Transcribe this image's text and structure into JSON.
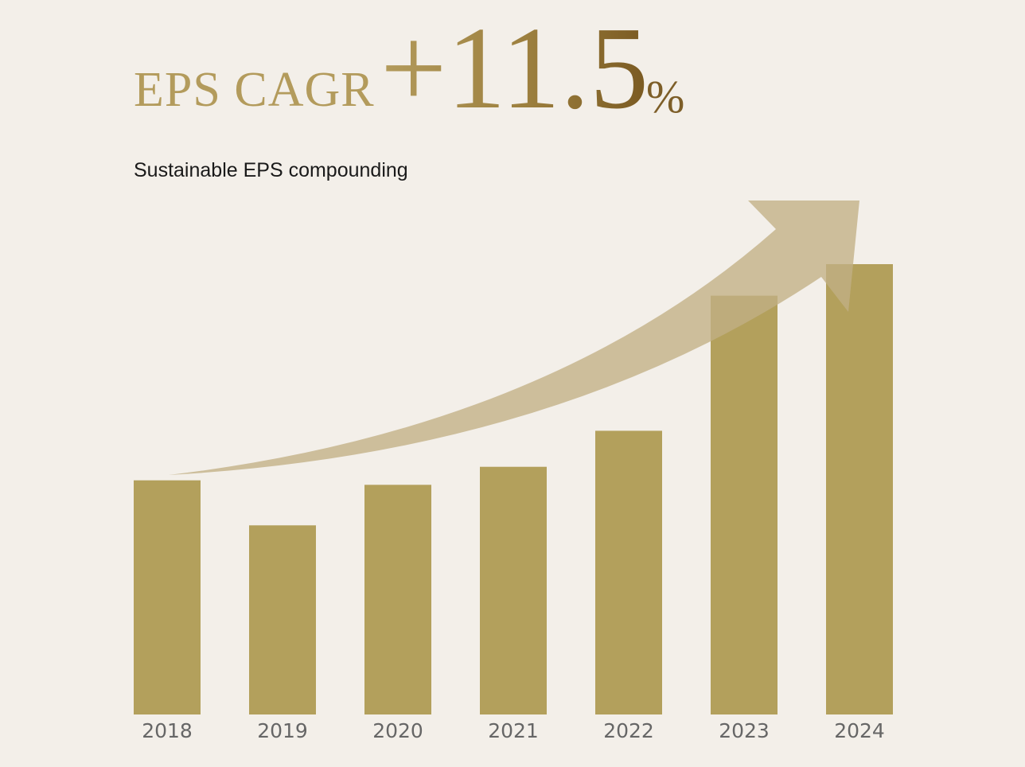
{
  "headline": {
    "label": "EPS CAGR",
    "value": "+11.5",
    "unit": "%"
  },
  "subtitle": "Sustainable EPS compounding",
  "colors": {
    "background": "#f3efe9",
    "bar": "#b3a05c",
    "arrow": "#c2b085",
    "title_gold": "#b39b5c",
    "tick_text": "#666666"
  },
  "chart_data": {
    "type": "bar",
    "title": "",
    "xlabel": "",
    "ylabel": "",
    "categories": [
      "2018",
      "2019",
      "2020",
      "2021",
      "2022",
      "2023",
      "2024"
    ],
    "values": [
      52,
      42,
      51,
      55,
      63,
      93,
      100
    ],
    "ylim": [
      0,
      100
    ],
    "grid": false,
    "annotations": [
      "upward trend arrow"
    ]
  }
}
